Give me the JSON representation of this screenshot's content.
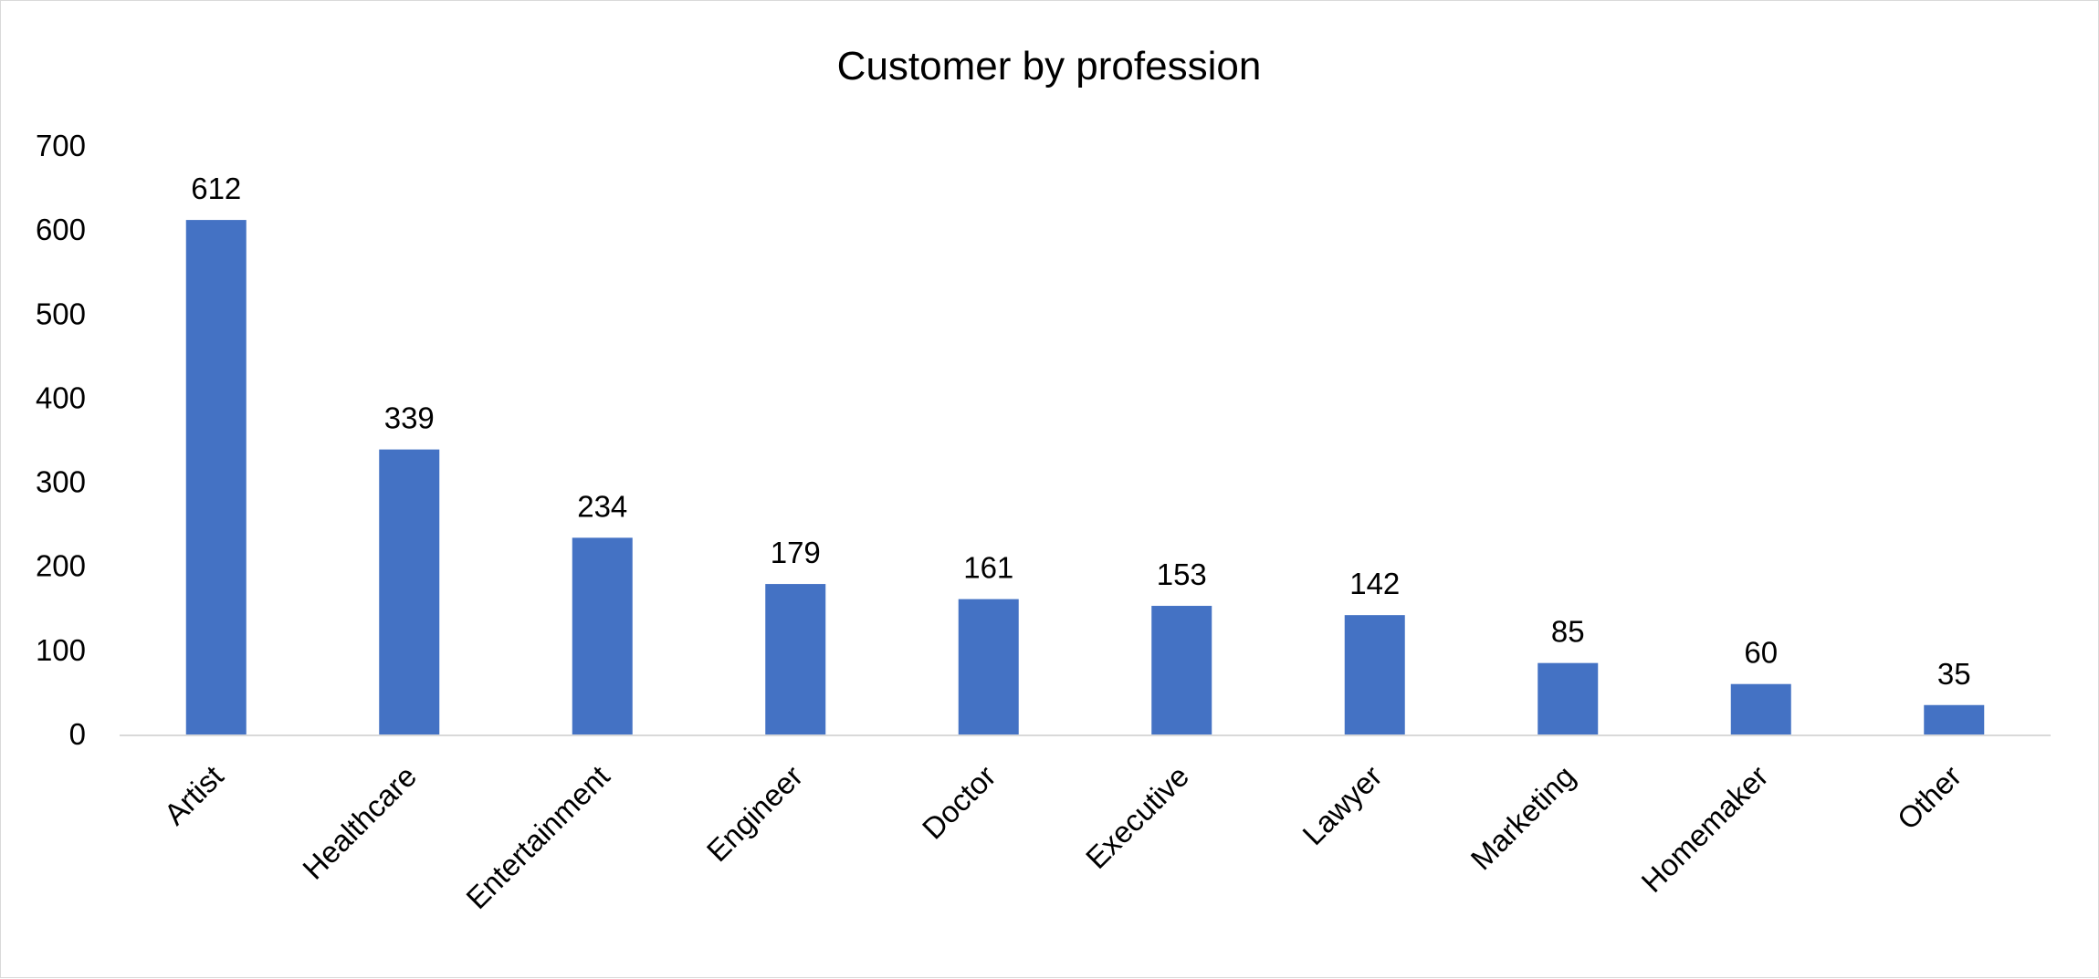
{
  "chart_data": {
    "type": "bar",
    "title": "Customer by profession",
    "xlabel": "",
    "ylabel": "",
    "categories": [
      "Artist",
      "Healthcare",
      "Entertainment",
      "Engineer",
      "Doctor",
      "Executive",
      "Lawyer",
      "Marketing",
      "Homemaker",
      "Other"
    ],
    "values": [
      612,
      339,
      234,
      179,
      161,
      153,
      142,
      85,
      60,
      35
    ],
    "ylim": [
      0,
      700
    ],
    "yticks": [
      0,
      100,
      200,
      300,
      400,
      500,
      600,
      700
    ],
    "grid": false,
    "legend": "none",
    "data_labels": true,
    "bar_color": "#4472c4"
  }
}
